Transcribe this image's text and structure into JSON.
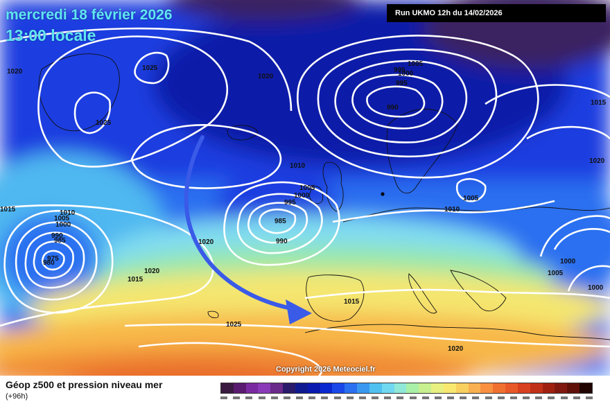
{
  "header": {
    "date": "mercredi 18 février 2026",
    "time": "13:00 locale",
    "run": "Run UKMO 12h du 14/02/2026"
  },
  "copyright": "Copyright 2026 Meteociel.fr",
  "footer": {
    "title": "Géop z500 et pression niveau mer",
    "subtitle": "(+96h)"
  },
  "legend": {
    "colors": [
      "#3a1a40",
      "#5a1a70",
      "#7a2aa0",
      "#8a3ab8",
      "#6a2a8a",
      "#2a1a6a",
      "#101a90",
      "#0a1ab0",
      "#0a28d0",
      "#1a48e8",
      "#2a70f0",
      "#3a98f0",
      "#50c0f0",
      "#70d8f0",
      "#90e8d8",
      "#a8f0a8",
      "#c8f090",
      "#e8f080",
      "#f8e870",
      "#f8d060",
      "#f8b050",
      "#f89040",
      "#f07030",
      "#e85828",
      "#d84020",
      "#c03018",
      "#a02010",
      "#801810",
      "#601008",
      "#200400"
    ]
  },
  "map": {
    "colors": {
      "purple": "#3a2060",
      "deep_blue": "#101aa8",
      "blue": "#1a3ee0",
      "light_blue": "#2a70f0",
      "cyan": "#50b8f0",
      "aqua": "#80dcf0",
      "green": "#9ae8a8",
      "yellow": "#f4e670",
      "orange": "#f8b84a",
      "dark_orange": "#f08a36",
      "red_orange": "#e86a2a",
      "arrow": "#3a5ae8"
    },
    "isobar_labels": [
      "1020",
      "1025",
      "1025",
      "1020",
      "1005",
      "995",
      "1000",
      "995",
      "990",
      "1015",
      "1020",
      "1010",
      "1005",
      "1000",
      "995",
      "985",
      "990",
      "1005",
      "1010",
      "1015",
      "1010",
      "1005",
      "1000",
      "990",
      "985",
      "980",
      "975",
      "1020",
      "1020",
      "1015",
      "1015",
      "1025",
      "1000",
      "1005",
      "1000",
      "1020"
    ]
  }
}
